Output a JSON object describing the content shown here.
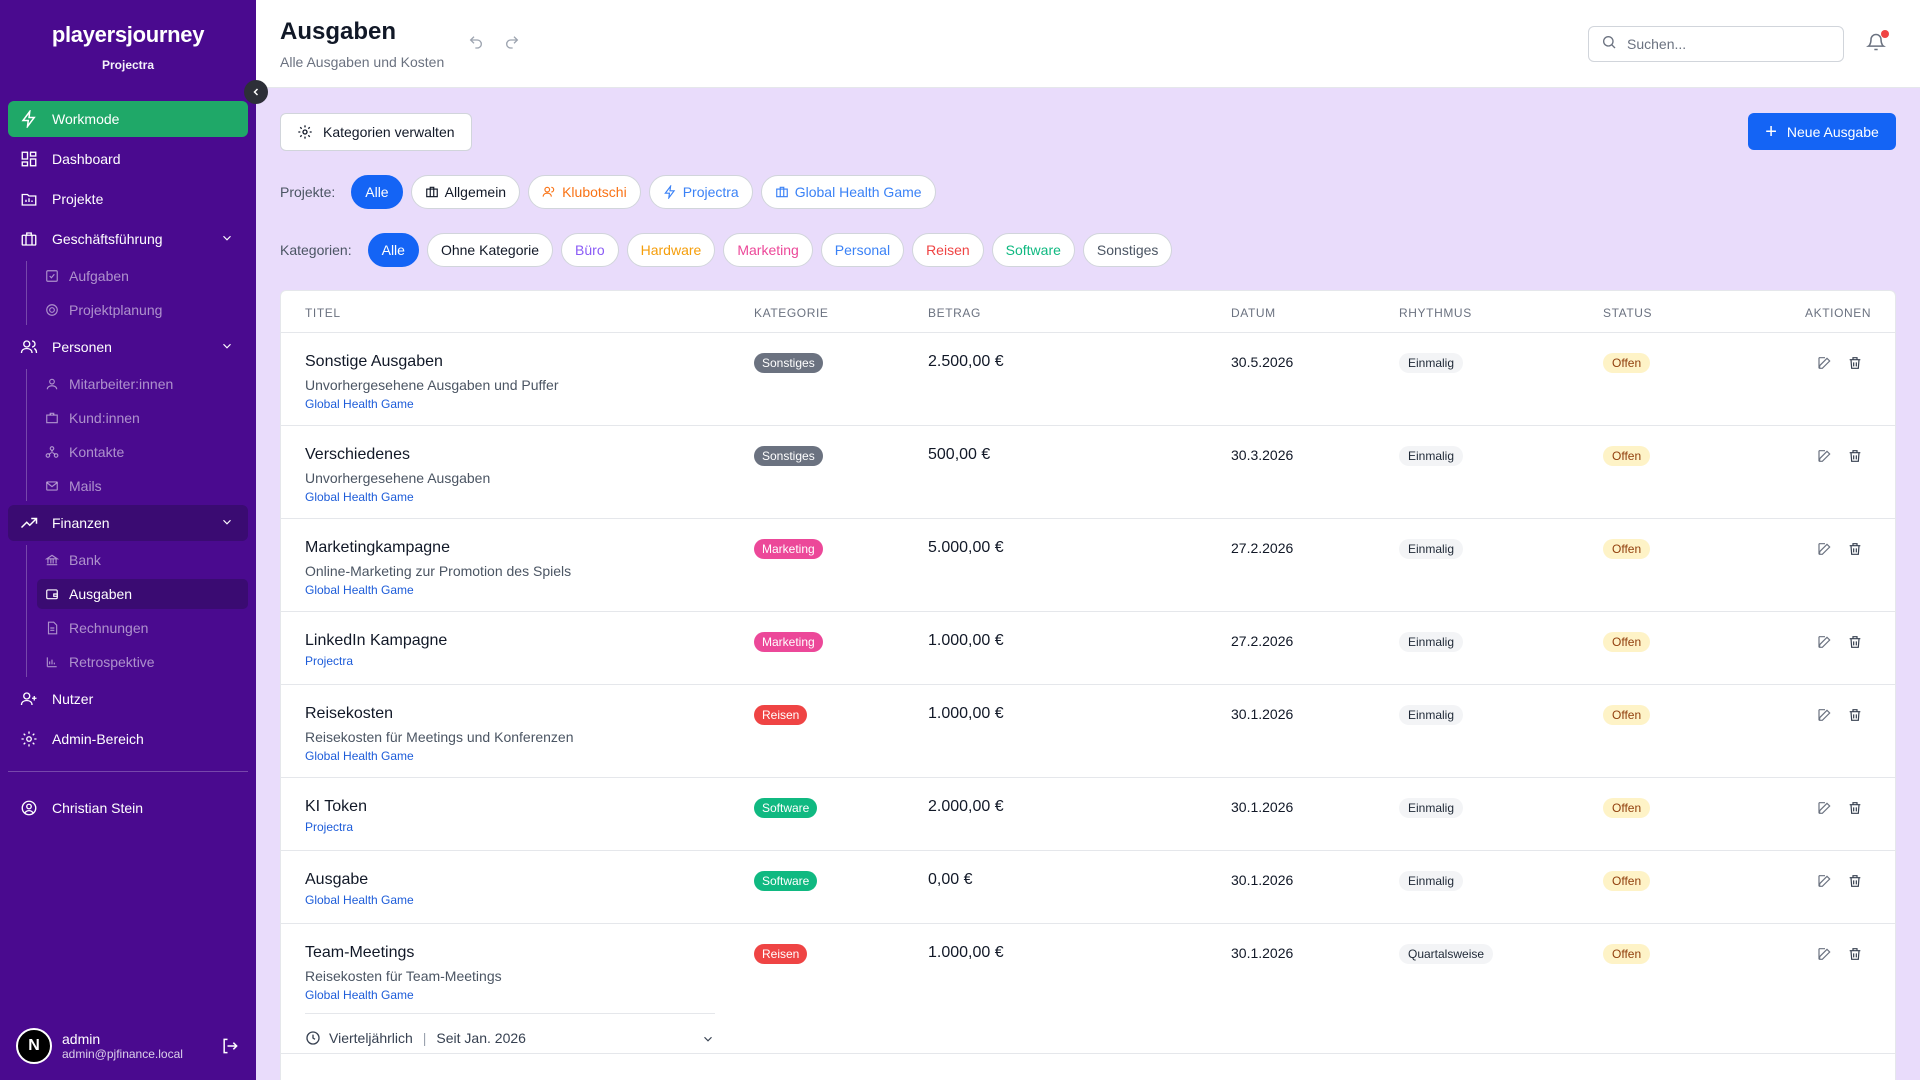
{
  "sidebar": {
    "brand": "playersjourney",
    "workspace": "Projectra",
    "nav": {
      "workmode": "Workmode",
      "dashboard": "Dashboard",
      "projekte": "Projekte",
      "geschaeftsfuehrung": "Geschäftsführung",
      "aufgaben": "Aufgaben",
      "projektplanung": "Projektplanung",
      "personen": "Personen",
      "mitarbeiter": "Mitarbeiter:innen",
      "kunden": "Kund:innen",
      "kontakte": "Kontakte",
      "mails": "Mails",
      "finanzen": "Finanzen",
      "bank": "Bank",
      "ausgaben": "Ausgaben",
      "rechnungen": "Rechnungen",
      "retrospektive": "Retrospektive",
      "nutzer": "Nutzer",
      "admin": "Admin-Bereich",
      "profile": "Christian Stein"
    },
    "user": {
      "initial": "N",
      "name": "admin",
      "email": "admin@pjfinance.local"
    }
  },
  "header": {
    "title": "Ausgaben",
    "subtitle": "Alle Ausgaben und Kosten",
    "search_placeholder": "Suchen..."
  },
  "toolbar": {
    "manage_categories": "Kategorien verwalten",
    "new_expense": "Neue Ausgabe"
  },
  "filters": {
    "projects_label": "Projekte:",
    "projects": [
      "Alle",
      "Allgemein",
      "Klubotschi",
      "Projectra",
      "Global Health Game"
    ],
    "categories_label": "Kategorien:",
    "categories": [
      "Alle",
      "Ohne Kategorie",
      "Büro",
      "Hardware",
      "Marketing",
      "Personal",
      "Reisen",
      "Software",
      "Sonstiges"
    ]
  },
  "colors": {
    "sidebar_bg": "#4a0a8f",
    "accent_green": "#1fa868",
    "primary_blue": "#1464f5",
    "page_bg": "#e9dcfb",
    "cat_sonstiges": "#6b7280",
    "cat_marketing": "#ec4899",
    "cat_reisen": "#ef4444",
    "cat_software": "#10b981"
  },
  "table": {
    "headers": {
      "titel": "TITEL",
      "kategorie": "KATEGORIE",
      "betrag": "BETRAG",
      "datum": "DATUM",
      "rhythmus": "RHYTHMUS",
      "status": "STATUS",
      "aktionen": "AKTIONEN"
    },
    "rows": [
      {
        "title": "Sonstige Ausgaben",
        "desc": "Unvorhergesehene Ausgaben und Puffer",
        "project": "Global Health Game",
        "category": "Sonstiges",
        "amount": "2.500,00 €",
        "date": "30.5.2026",
        "rhythm": "Einmalig",
        "status": "Offen"
      },
      {
        "title": "Verschiedenes",
        "desc": "Unvorhergesehene Ausgaben",
        "project": "Global Health Game",
        "category": "Sonstiges",
        "amount": "500,00 €",
        "date": "30.3.2026",
        "rhythm": "Einmalig",
        "status": "Offen"
      },
      {
        "title": "Marketingkampagne",
        "desc": "Online-Marketing zur Promotion des Spiels",
        "project": "Global Health Game",
        "category": "Marketing",
        "amount": "5.000,00 €",
        "date": "27.2.2026",
        "rhythm": "Einmalig",
        "status": "Offen"
      },
      {
        "title": "LinkedIn Kampagne",
        "desc": "",
        "project": "Projectra",
        "category": "Marketing",
        "amount": "1.000,00 €",
        "date": "27.2.2026",
        "rhythm": "Einmalig",
        "status": "Offen"
      },
      {
        "title": "Reisekosten",
        "desc": "Reisekosten für Meetings und Konferenzen",
        "project": "Global Health Game",
        "category": "Reisen",
        "amount": "1.000,00 €",
        "date": "30.1.2026",
        "rhythm": "Einmalig",
        "status": "Offen"
      },
      {
        "title": "KI Token",
        "desc": "",
        "project": "Projectra",
        "category": "Software",
        "amount": "2.000,00 €",
        "date": "30.1.2026",
        "rhythm": "Einmalig",
        "status": "Offen"
      },
      {
        "title": "Ausgabe",
        "desc": "",
        "project": "Global Health Game",
        "category": "Software",
        "amount": "0,00 €",
        "date": "30.1.2026",
        "rhythm": "Einmalig",
        "status": "Offen"
      },
      {
        "title": "Team-Meetings",
        "desc": "Reisekosten für Team-Meetings",
        "project": "Global Health Game",
        "category": "Reisen",
        "amount": "1.000,00 €",
        "date": "30.1.2026",
        "rhythm": "Quartalsweise",
        "status": "Offen"
      }
    ],
    "recurrence": {
      "freq": "Vierteljährlich",
      "since": "Seit Jan. 2026"
    }
  }
}
